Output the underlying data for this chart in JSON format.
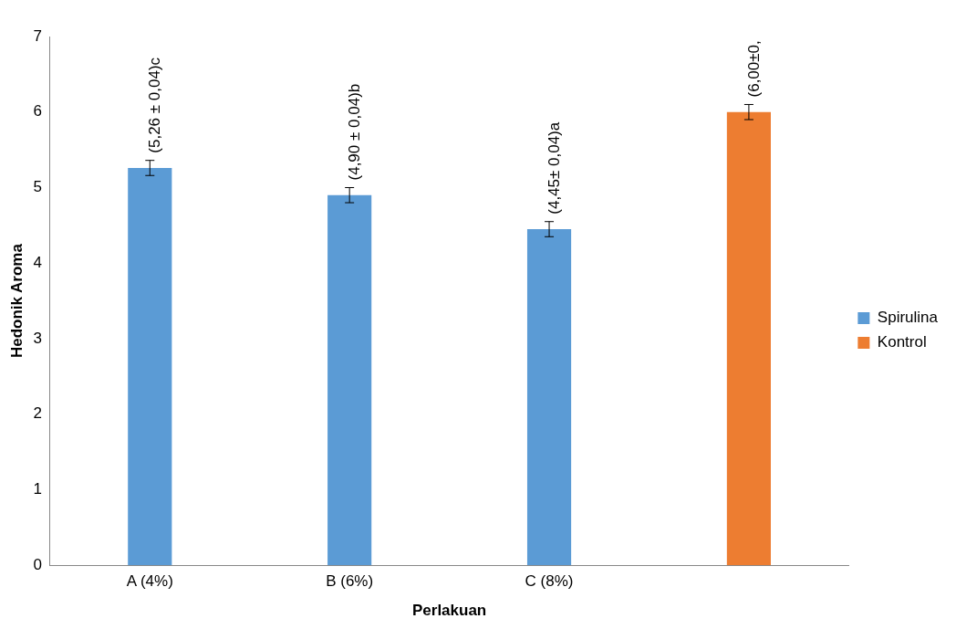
{
  "chart_data": {
    "type": "bar",
    "xlabel": "Perlakuan",
    "ylabel": "Hedonik Aroma",
    "categories": [
      "A (4%)",
      "B (6%)",
      "C (8%)",
      null
    ],
    "series": [
      {
        "name": "Spirulina",
        "color": "#5b9bd5",
        "values": [
          5.26,
          4.9,
          4.45,
          null
        ],
        "errors": [
          0.1,
          0.1,
          0.1,
          null
        ],
        "value_labels": [
          "(5,26 ± 0,04)c",
          "(4,90 ± 0,04)b",
          "(4,45± 0,04)a",
          null
        ]
      },
      {
        "name": "Kontrol",
        "color": "#ed7d31",
        "values": [
          null,
          null,
          null,
          6.0
        ],
        "errors": [
          null,
          null,
          null,
          0.1
        ],
        "value_labels": [
          null,
          null,
          null,
          "(6,00±0,"
        ]
      }
    ],
    "ylim": [
      0,
      7
    ],
    "yticks": [
      0,
      1,
      2,
      3,
      4,
      5,
      6,
      7
    ],
    "grid": false,
    "legend": "right"
  }
}
